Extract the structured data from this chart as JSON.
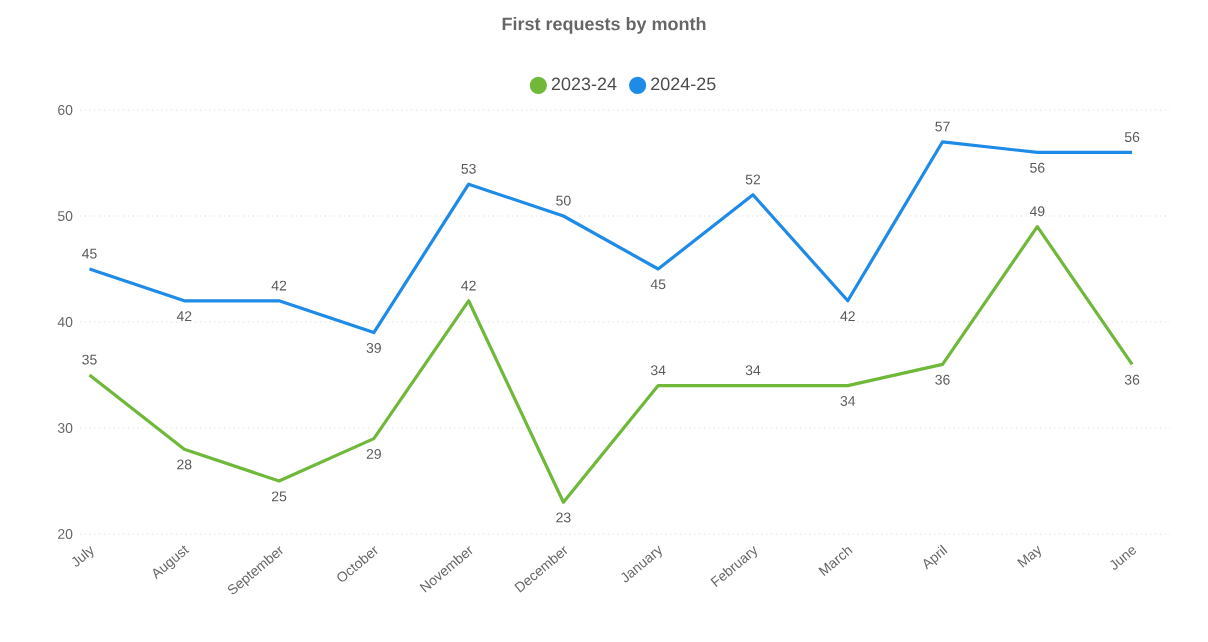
{
  "chart_data": {
    "type": "line",
    "title": "First requests by month",
    "categories": [
      "July",
      "August",
      "September",
      "October",
      "November",
      "December",
      "January",
      "February",
      "March",
      "April",
      "May",
      "June"
    ],
    "series": [
      {
        "name": "2023-24",
        "color": "#6fb83a",
        "values": [
          35,
          28,
          25,
          29,
          42,
          23,
          34,
          34,
          34,
          36,
          49,
          36
        ]
      },
      {
        "name": "2024-25",
        "color": "#1e8be8",
        "values": [
          45,
          42,
          42,
          39,
          53,
          50,
          45,
          52,
          42,
          57,
          56,
          56
        ]
      }
    ],
    "ylim": [
      20,
      60
    ],
    "yticks": [
      20,
      30,
      40,
      50,
      60
    ],
    "grid": "y",
    "legend": "top",
    "data_labels": true
  }
}
